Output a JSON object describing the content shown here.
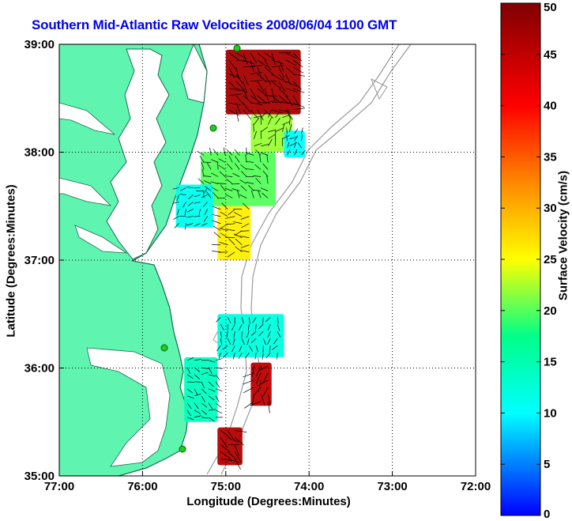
{
  "title": "Southern Mid-Atlantic Raw Velocities 2008/06/04 1100 GMT",
  "xlabel": "Longitude (Degrees:Minutes)",
  "ylabel": "Latitude (Degrees:Minutes)",
  "colorbar": {
    "label": "Surface Velocity (cm/s)",
    "min": 0,
    "max": 50,
    "ticks": [
      "0",
      "5",
      "10",
      "15",
      "20",
      "25",
      "30",
      "35",
      "40",
      "45",
      "50"
    ]
  },
  "map": {
    "lon_range": [
      -77,
      -72
    ],
    "lat_range": [
      35,
      39
    ],
    "x_ticks": [
      "77:00",
      "76:00",
      "75:00",
      "74:00",
      "73:00",
      "72:00"
    ],
    "y_ticks": [
      "39:00",
      "38:00",
      "37:00",
      "36:00",
      "35:00"
    ],
    "grid": "dotted",
    "land_color": "#5ff5b0",
    "coast_color": "#1a6b4a",
    "bathymetry_color": "#9a9a9a",
    "station_color": "#22cc22"
  },
  "chart_data": {
    "type": "vector-field",
    "units": "cm/s",
    "regions": [
      {
        "lon": [
          -75.0,
          -74.1
        ],
        "lat": [
          38.35,
          38.95
        ],
        "speed": 47
      },
      {
        "lon": [
          -74.7,
          -74.2
        ],
        "lat": [
          38.0,
          38.35
        ],
        "speed": 22
      },
      {
        "lon": [
          -74.3,
          -74.05
        ],
        "lat": [
          37.95,
          38.2
        ],
        "speed": 10
      },
      {
        "lon": [
          -75.3,
          -74.4
        ],
        "lat": [
          37.5,
          38.0
        ],
        "speed": 20
      },
      {
        "lon": [
          -75.1,
          -74.7
        ],
        "lat": [
          37.0,
          37.5
        ],
        "speed": 26
      },
      {
        "lon": [
          -75.6,
          -75.15
        ],
        "lat": [
          37.3,
          37.7
        ],
        "speed": 11
      },
      {
        "lon": [
          -75.1,
          -74.3
        ],
        "lat": [
          36.1,
          36.5
        ],
        "speed": 12
      },
      {
        "lon": [
          -74.7,
          -74.45
        ],
        "lat": [
          35.65,
          36.05
        ],
        "speed": 45
      },
      {
        "lon": [
          -75.5,
          -75.1
        ],
        "lat": [
          35.5,
          36.1
        ],
        "speed": 14
      },
      {
        "lon": [
          -75.1,
          -74.8
        ],
        "lat": [
          35.1,
          35.45
        ],
        "speed": 46
      }
    ]
  }
}
